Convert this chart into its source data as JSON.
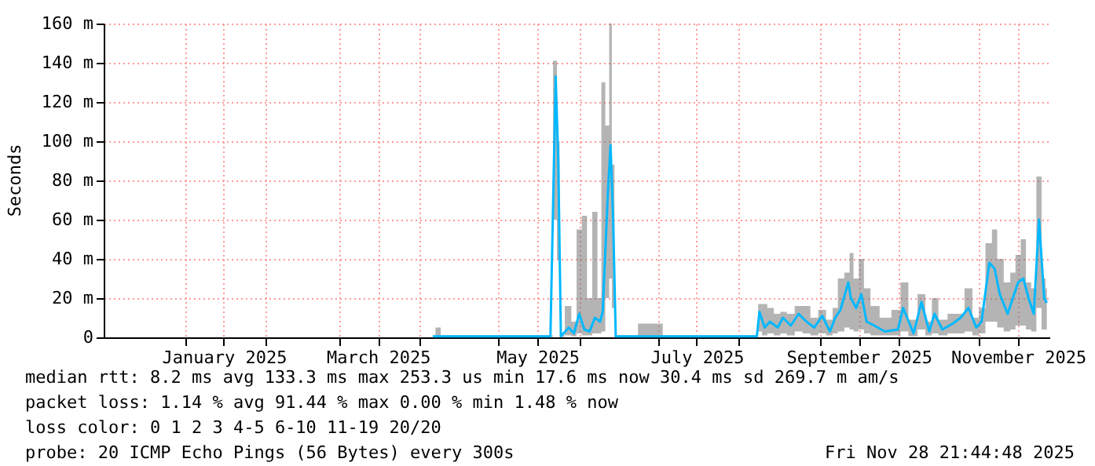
{
  "chart_data": {
    "type": "line",
    "ylabel": "Seconds",
    "xlim": [
      "2024-12-01",
      "2025-11-28"
    ],
    "xticks": [
      {
        "value": "2025-01-01",
        "label": null
      },
      {
        "value": "2025-01-16",
        "label": "January 2025"
      },
      {
        "value": "2025-02-01",
        "label": null
      },
      {
        "value": "2025-03-01",
        "label": null
      },
      {
        "value": "2025-03-16",
        "label": "March 2025"
      },
      {
        "value": "2025-04-01",
        "label": null
      },
      {
        "value": "2025-05-01",
        "label": null
      },
      {
        "value": "2025-05-16",
        "label": "May 2025"
      },
      {
        "value": "2025-06-01",
        "label": null
      },
      {
        "value": "2025-07-01",
        "label": null
      },
      {
        "value": "2025-07-16",
        "label": "July 2025"
      },
      {
        "value": "2025-08-01",
        "label": null
      },
      {
        "value": "2025-09-01",
        "label": null
      },
      {
        "value": "2025-09-16",
        "label": "September 2025"
      },
      {
        "value": "2025-10-01",
        "label": null
      },
      {
        "value": "2025-11-01",
        "label": null
      },
      {
        "value": "2025-11-16",
        "label": "November 2025"
      }
    ],
    "ylim": [
      0,
      160
    ],
    "yticks": [
      0,
      {
        "value": 20,
        "label": "20 m"
      },
      {
        "value": 40,
        "label": "40 m"
      },
      {
        "value": 60,
        "label": "60 m"
      },
      {
        "value": 80,
        "label": "80 m"
      },
      {
        "value": 100,
        "label": "100 m"
      },
      {
        "value": 120,
        "label": "120 m"
      },
      {
        "value": 140,
        "label": "140 m"
      },
      {
        "value": 160,
        "label": "160 m"
      }
    ],
    "grid": true,
    "marker": "none",
    "line_style": "solid",
    "series": [
      {
        "color": "#00b8ff",
        "x": [
          "2025-04-06",
          "2025-04-08",
          "2025-04-10",
          "2025-05-21",
          "2025-05-23",
          "2025-05-24",
          "2025-05-25",
          "2025-05-28",
          "2025-05-30",
          "2025-06-01",
          "2025-06-03",
          "2025-06-05",
          "2025-06-07",
          "2025-06-09",
          "2025-06-10",
          "2025-06-12",
          "2025-06-13",
          "2025-06-14",
          "2025-06-15",
          "2025-07-02",
          "2025-07-04",
          "2025-08-08",
          "2025-08-09",
          "2025-08-11",
          "2025-08-13",
          "2025-08-16",
          "2025-08-18",
          "2025-08-21",
          "2025-08-24",
          "2025-08-27",
          "2025-08-30",
          "2025-09-02",
          "2025-09-05",
          "2025-09-07",
          "2025-09-09",
          "2025-09-12",
          "2025-09-13",
          "2025-09-15",
          "2025-09-17",
          "2025-09-19",
          "2025-09-22",
          "2025-09-26",
          "2025-10-01",
          "2025-10-03",
          "2025-10-07",
          "2025-10-10",
          "2025-10-13",
          "2025-10-15",
          "2025-10-18",
          "2025-10-22",
          "2025-10-25",
          "2025-10-28",
          "2025-10-31",
          "2025-11-02",
          "2025-11-05",
          "2025-11-07",
          "2025-11-09",
          "2025-11-12",
          "2025-11-14",
          "2025-11-16",
          "2025-11-18",
          "2025-11-20",
          "2025-11-22",
          "2025-11-24",
          "2025-11-26",
          "2025-11-27"
        ],
        "values": [
          0.5,
          0.5,
          0.5,
          0.5,
          133,
          90,
          0.5,
          5,
          2,
          12,
          4,
          3,
          10,
          8,
          13,
          74,
          98,
          60,
          0.5,
          0.5,
          0.5,
          0.5,
          13,
          5,
          8,
          5,
          10,
          6,
          12,
          8,
          5,
          11,
          3,
          10,
          14,
          28,
          20,
          15,
          22,
          8,
          6,
          3,
          4,
          15,
          2,
          18,
          3,
          12,
          4,
          7,
          10,
          15,
          5,
          8,
          38,
          35,
          22,
          12,
          20,
          28,
          30,
          20,
          12,
          60,
          20,
          17.6
        ],
        "lower": [
          0.3,
          0.3,
          0.3,
          0.3,
          60,
          40,
          0.3,
          1,
          0.5,
          2,
          1,
          1,
          2,
          2,
          3,
          20,
          30,
          15,
          0.3,
          0.3,
          0.3,
          0.3,
          3,
          1,
          2,
          1,
          2,
          1,
          3,
          2,
          1,
          2,
          1,
          2,
          3,
          5,
          4,
          3,
          4,
          2,
          1,
          1,
          1,
          3,
          0.5,
          4,
          1,
          2,
          1,
          2,
          2,
          3,
          1,
          2,
          8,
          8,
          5,
          3,
          4,
          6,
          6,
          4,
          3,
          15,
          4,
          4
        ],
        "upper": [
          1,
          5,
          1,
          1,
          141,
          100,
          1,
          16,
          8,
          55,
          62,
          20,
          64,
          20,
          130,
          108,
          160,
          88,
          1,
          7,
          1,
          1,
          17,
          17,
          15,
          12,
          13,
          12,
          16,
          16,
          10,
          14,
          9,
          15,
          30,
          33,
          43,
          30,
          40,
          25,
          16,
          10,
          14,
          28,
          9,
          22,
          8,
          20,
          9,
          12,
          12,
          25,
          10,
          15,
          48,
          55,
          40,
          28,
          33,
          42,
          50,
          28,
          25,
          82,
          30,
          25
        ]
      }
    ],
    "annotations": [
      "median rtt:  8.2 ms avg  133.3 ms max  253.3 us min  17.6 ms now  30.4 ms sd  269.7 m am/s",
      "packet loss: 1.14 % avg  91.44 % max  0.00 % min  1.48 % now",
      "loss color:  0  1  2  3  4-5  6-10  11-19  20/20",
      "probe:       20 ICMP Echo Pings (56 Bytes) every 300s",
      "Fri Nov 28 21:44:48 2025"
    ]
  }
}
